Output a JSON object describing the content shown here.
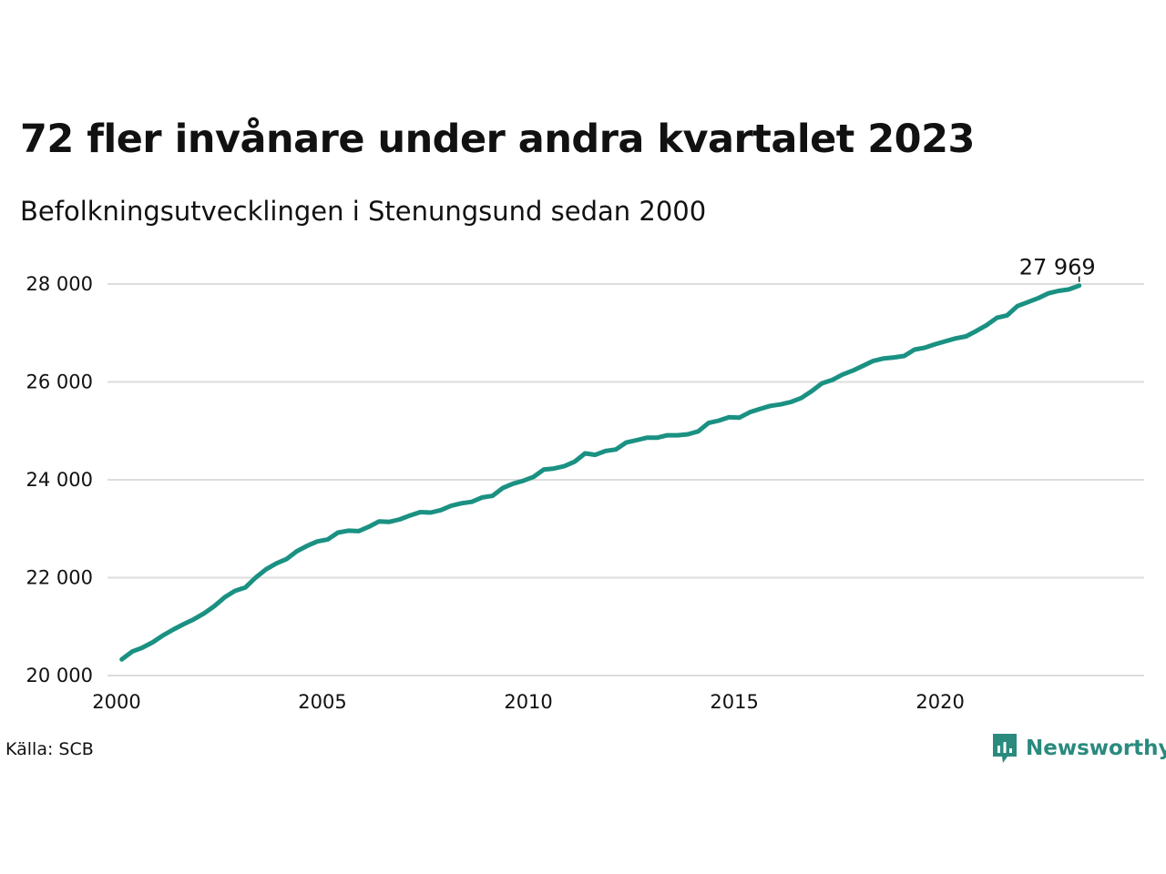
{
  "title": "72 fler invånare under andra kvartalet 2023",
  "subtitle": "Befolkningsutvecklingen i Stenungsund sedan 2000",
  "source": "Källa: SCB",
  "brand": "Newsworthy",
  "colors": {
    "line": "#1a9182",
    "grid": "#dddddd",
    "brand": "#2a8a7e"
  },
  "chart_data": {
    "type": "line",
    "title": "72 fler invånare under andra kvartalet 2023",
    "subtitle": "Befolkningsutvecklingen i Stenungsund sedan 2000",
    "xlabel": "",
    "ylabel": "",
    "xlim": [
      2000,
      2024.2
    ],
    "ylim": [
      20000,
      28000
    ],
    "x_ticks": [
      2000,
      2005,
      2010,
      2015,
      2020
    ],
    "y_ticks": [
      20000,
      22000,
      24000,
      26000,
      28000
    ],
    "y_tick_labels": [
      "20 000",
      "22 000",
      "24 000",
      "26 000",
      "28 000"
    ],
    "grid": true,
    "last_label": "27 969",
    "series": [
      {
        "x": [
          2000.125,
          2000.375,
          2000.625,
          2000.875,
          2001.125,
          2001.375,
          2001.625,
          2001.875,
          2002.125,
          2002.375,
          2002.625,
          2002.875,
          2003.125,
          2003.375,
          2003.625,
          2003.875,
          2004.125,
          2004.375,
          2004.625,
          2004.875,
          2005.125,
          2005.375,
          2005.625,
          2005.875,
          2006.125,
          2006.375,
          2006.625,
          2006.875,
          2007.125,
          2007.375,
          2007.625,
          2007.875,
          2008.125,
          2008.375,
          2008.625,
          2008.875,
          2009.125,
          2009.375,
          2009.625,
          2009.875,
          2010.125,
          2010.375,
          2010.625,
          2010.875,
          2011.125,
          2011.375,
          2011.625,
          2011.875,
          2012.125,
          2012.375,
          2012.625,
          2012.875,
          2013.125,
          2013.375,
          2013.625,
          2013.875,
          2014.125,
          2014.375,
          2014.625,
          2014.875,
          2015.125,
          2015.375,
          2015.625,
          2015.875,
          2016.125,
          2016.375,
          2016.625,
          2016.875,
          2017.125,
          2017.375,
          2017.625,
          2017.875,
          2018.125,
          2018.375,
          2018.625,
          2018.875,
          2019.125,
          2019.375,
          2019.625,
          2019.875,
          2020.125,
          2020.375,
          2020.625,
          2020.875,
          2021.125,
          2021.375,
          2021.625,
          2021.875,
          2022.125,
          2022.375,
          2022.625,
          2022.875,
          2023.125,
          2023.375
        ],
        "values": [
          20330,
          20490,
          20570,
          20680,
          20820,
          20940,
          21050,
          21150,
          21270,
          21420,
          21600,
          21730,
          21800,
          22000,
          22170,
          22290,
          22380,
          22540,
          22650,
          22740,
          22780,
          22920,
          22960,
          22950,
          23040,
          23150,
          23140,
          23190,
          23270,
          23340,
          23330,
          23380,
          23470,
          23520,
          23550,
          23640,
          23670,
          23830,
          23920,
          23980,
          24060,
          24210,
          24230,
          24280,
          24370,
          24540,
          24510,
          24590,
          24620,
          24760,
          24810,
          24860,
          24860,
          24910,
          24910,
          24930,
          24990,
          25160,
          25210,
          25280,
          25270,
          25380,
          25450,
          25510,
          25540,
          25590,
          25670,
          25810,
          25970,
          26040,
          26150,
          26230,
          26330,
          26430,
          26480,
          26500,
          26530,
          26660,
          26700,
          26770,
          26830,
          26890,
          26930,
          27040,
          27160,
          27310,
          27360,
          27550,
          27630,
          27710,
          27810,
          27860,
          27890,
          27969
        ]
      }
    ]
  }
}
